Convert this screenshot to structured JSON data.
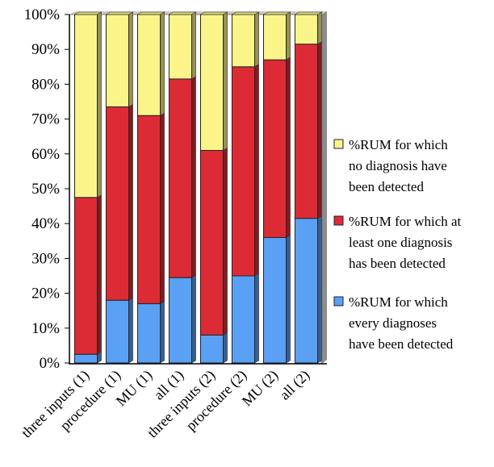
{
  "chart_data": {
    "type": "bar",
    "stacked": true,
    "normalized": true,
    "categories": [
      "three inputs (1)",
      "procedure  (1)",
      "MU  (1)",
      "all  (1)",
      "three inputs (2)",
      "procedure  (2)",
      "MU  (2)",
      "all  (2)"
    ],
    "series": [
      {
        "name": "%RUM for which every diagnoses have been detected",
        "color": "#5aa0f5",
        "values": [
          2.5,
          18,
          17,
          24.5,
          8,
          25,
          36,
          41.5
        ]
      },
      {
        "name": "%RUM for which at least one diagnosis has been detected",
        "color": "#dd2b35",
        "values": [
          45,
          55.5,
          54,
          57,
          53,
          60,
          51,
          50
        ]
      },
      {
        "name": "%RUM for which no diagnosis have been detected",
        "color": "#fbf589",
        "values": [
          52.5,
          26.5,
          29,
          18.5,
          39,
          15,
          13,
          8.5
        ]
      }
    ],
    "y_ticks": [
      "0%",
      "10%",
      "20%",
      "30%",
      "40%",
      "50%",
      "60%",
      "70%",
      "80%",
      "90%",
      "100%"
    ],
    "ylim": [
      0,
      100
    ],
    "grid": false,
    "legend_position": "right"
  },
  "legend": {
    "items": [
      {
        "lines": [
          "%RUM for which",
          "no diagnosis have",
          "been detected"
        ]
      },
      {
        "lines": [
          "%RUM for which at",
          "least one diagnosis",
          "has been detected"
        ]
      },
      {
        "lines": [
          "%RUM for which",
          "every diagnoses",
          "have been detected"
        ]
      }
    ]
  }
}
